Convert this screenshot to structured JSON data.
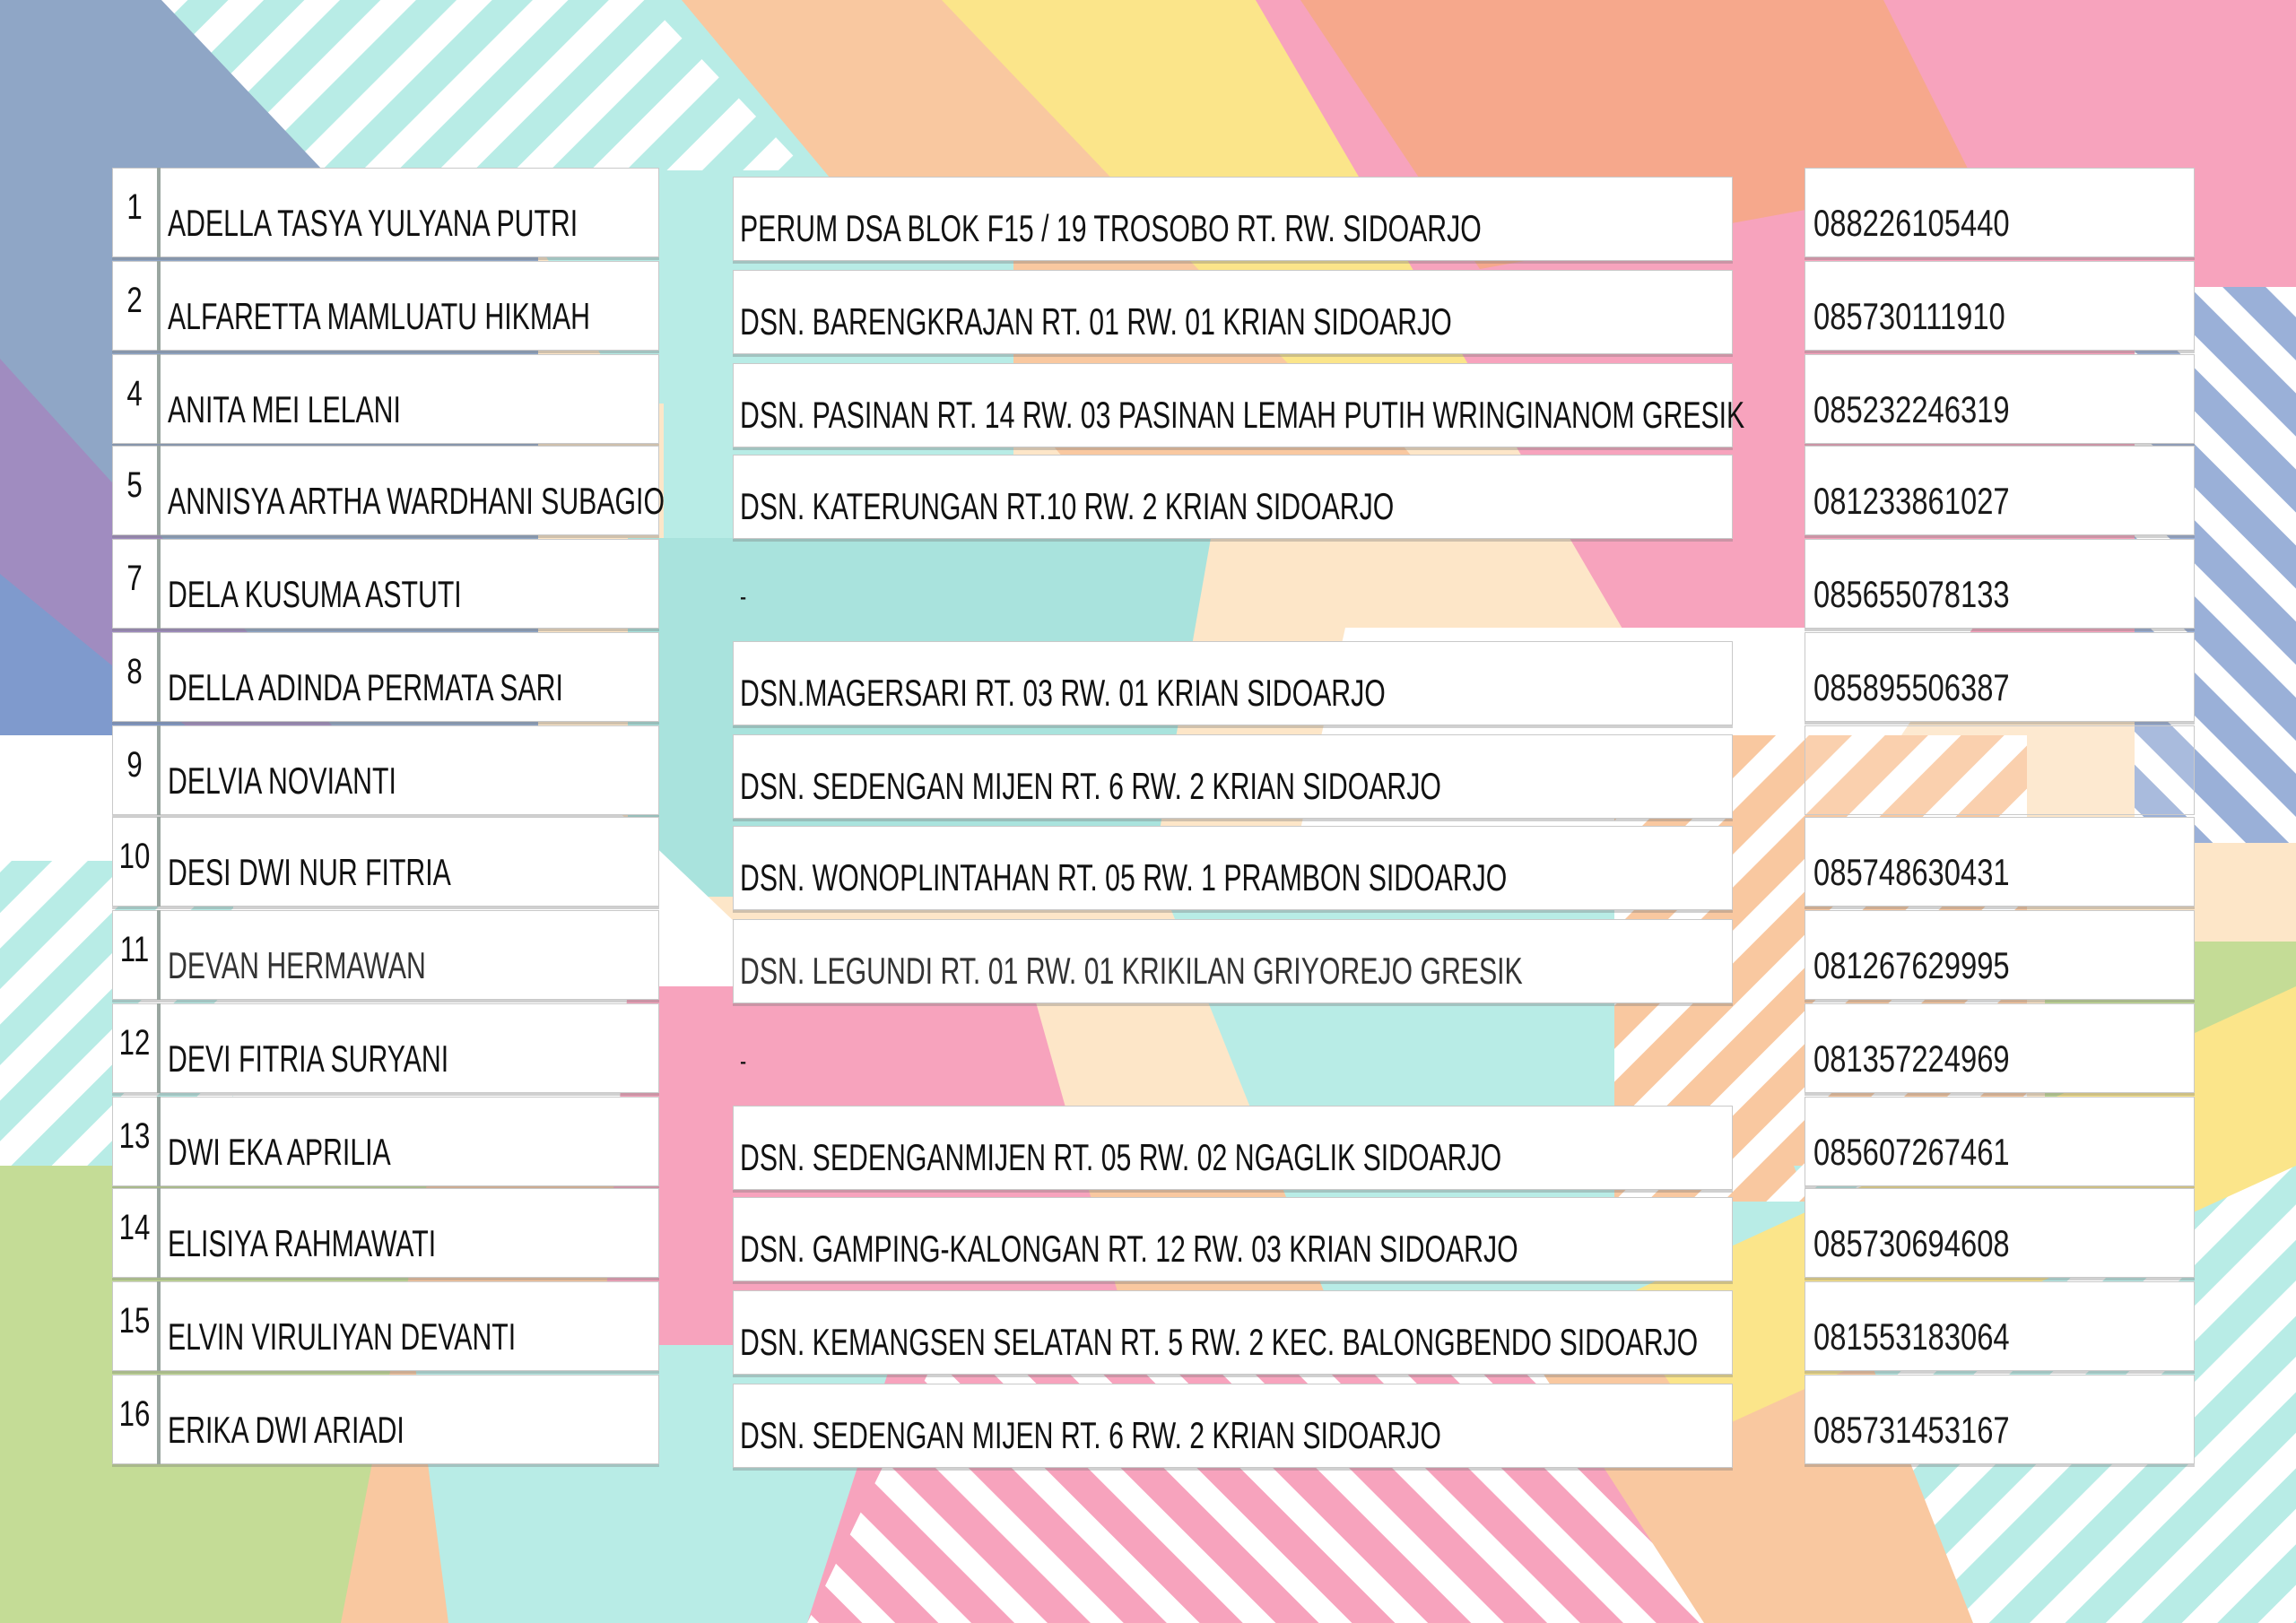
{
  "colors": {
    "pink": "#f7a3bd",
    "peach": "#f9c8a0",
    "mint": "#b8ece6",
    "yellow": "#fbe58a",
    "lavender": "#9aa6d4",
    "green": "#c4dc96",
    "salmon": "#f6a88c"
  },
  "rows": [
    {
      "no": "1",
      "name": "ADELLA TASYA YULYANA PUTRI",
      "address": "PERUM DSA BLOK F15 / 19 TROSOBO RT. RW. SIDOARJO",
      "phone": "088226105440"
    },
    {
      "no": "2",
      "name": "ALFARETTA MAMLUATU HIKMAH",
      "address": "DSN. BARENGKRAJAN RT. 01 RW. 01 KRIAN SIDOARJO",
      "phone": "085730111910"
    },
    {
      "no": "4",
      "name": "ANITA MEI LELANI",
      "address": "DSN. PASINAN RT. 14 RW. 03 PASINAN LEMAH PUTIH WRINGINANOM GRESIK",
      "phone": "085232246319"
    },
    {
      "no": "5",
      "name": "ANNISYA ARTHA WARDHANI SUBAGIO",
      "address": "DSN. KATERUNGAN RT.10 RW. 2 KRIAN SIDOARJO",
      "phone": "081233861027"
    },
    {
      "no": "7",
      "name": "DELA KUSUMA ASTUTI",
      "address": "-",
      "phone": "085655078133"
    },
    {
      "no": "8",
      "name": "DELLA ADINDA PERMATA SARI",
      "address": "DSN.MAGERSARI RT. 03 RW. 01 KRIAN SIDOARJO",
      "phone": "085895506387"
    },
    {
      "no": "9",
      "name": "DELVIA NOVIANTI",
      "address": "DSN. SEDENGAN MIJEN RT. 6 RW. 2 KRIAN SIDOARJO",
      "phone": ""
    },
    {
      "no": "10",
      "name": "DESI DWI NUR FITRIA",
      "address": "DSN. WONOPLINTAHAN RT. 05 RW. 1 PRAMBON SIDOARJO",
      "phone": "085748630431"
    },
    {
      "no": "11",
      "name": "DEVAN HERMAWAN",
      "address": "DSN. LEGUNDI RT. 01 RW. 01 KRIKILAN GRIYOREJO GRESIK",
      "phone": "081267629995"
    },
    {
      "no": "12",
      "name": "DEVI FITRIA SURYANI",
      "address": "-",
      "phone": "081357224969"
    },
    {
      "no": "13",
      "name": "DWI EKA APRILIA",
      "address": "DSN. SEDENGANMIJEN RT. 05 RW. 02 NGAGLIK SIDOARJO",
      "phone": "085607267461"
    },
    {
      "no": "14",
      "name": "ELISIYA RAHMAWATI",
      "address": "DSN. GAMPING-KALONGAN RT. 12 RW. 03 KRIAN SIDOARJO",
      "phone": "085730694608"
    },
    {
      "no": "15",
      "name": "ELVIN VIRULIYAN DEVANTI",
      "address": "DSN. KEMANGSEN SELATAN RT. 5 RW. 2 KEC. BALONGBENDO SIDOARJO",
      "phone": "081553183064"
    },
    {
      "no": "16",
      "name": "ERIKA DWI ARIADI",
      "address": "DSN. SEDENGAN MIJEN RT. 6 RW. 2 KRIAN SIDOARJO",
      "phone": "085731453167"
    }
  ]
}
